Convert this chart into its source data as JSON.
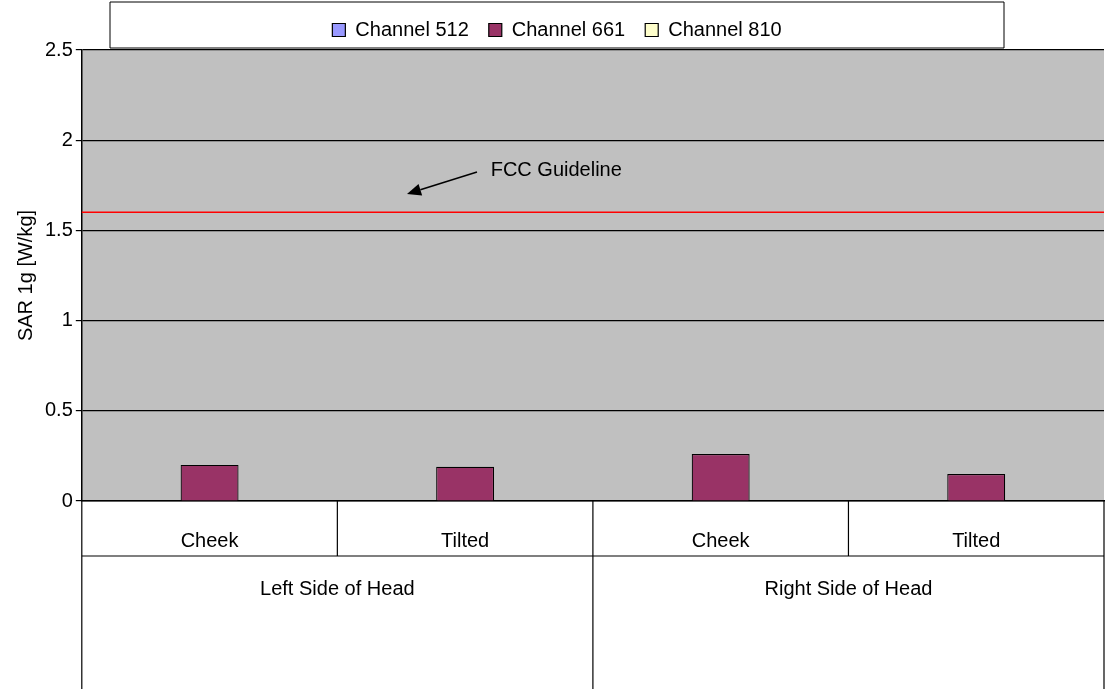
{
  "chart_data": {
    "type": "bar",
    "ylabel": "SAR 1g [W/kg]",
    "categories": [
      "Cheek",
      "Tilted",
      "Cheek",
      "Tilted"
    ],
    "series": [
      {
        "name": "Channel 512",
        "color": "#9999ff",
        "values": [
          null,
          null,
          null,
          null
        ]
      },
      {
        "name": "Channel 661",
        "color": "#993366",
        "values": [
          0.2,
          0.19,
          0.26,
          0.15
        ]
      },
      {
        "name": "Channel 810",
        "color": "#ffffcc",
        "values": [
          null,
          null,
          null,
          null
        ]
      }
    ],
    "ylim": [
      0,
      2.5
    ],
    "yticks": [
      0,
      0.5,
      1,
      1.5,
      2,
      2.5
    ],
    "grid": "y",
    "legend": "top",
    "ref_lines": [
      {
        "axis": "y",
        "value": 1.6,
        "label": "FCC Guideline",
        "color": "#ff0000"
      }
    ],
    "annotations": [
      "Left Side of Head",
      "Right Side of Head"
    ]
  }
}
